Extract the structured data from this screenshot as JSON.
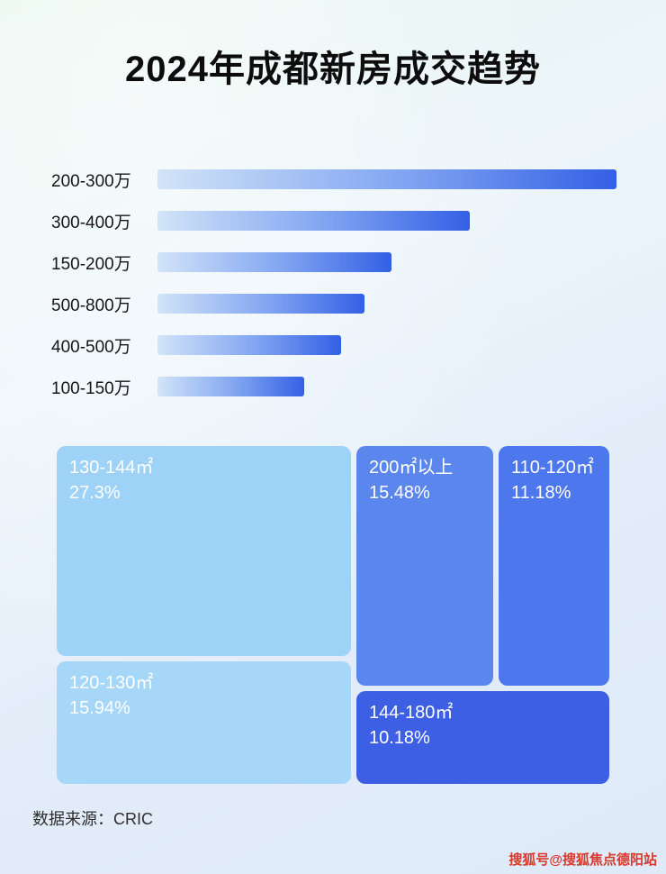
{
  "page": {
    "title": "2024年成都新房成交趋势",
    "footer_source": "数据来源：CRIC",
    "watermark": "搜狐号@搜狐焦点德阳站"
  },
  "colors": {
    "bar_gradient_start": "#d2e4f8",
    "bar_gradient_end": "#3360e5",
    "background_tint_1": "#e6f6ee",
    "background_tint_2": "#deeaf8",
    "watermark_red": "#d9382c"
  },
  "chart_data": [
    {
      "type": "bar",
      "orientation": "horizontal",
      "title": "2024年成都新房成交趋势",
      "categories": [
        "200-300万",
        "300-400万",
        "150-200万",
        "500-800万",
        "400-500万",
        "100-150万"
      ],
      "values": [
        100,
        68,
        51,
        45,
        40,
        32
      ],
      "value_unit": "relative length % (no numeric axis shown in image)",
      "value_labels_shown": false,
      "grid": false,
      "legend": false
    },
    {
      "type": "treemap",
      "title": "",
      "items": [
        {
          "label": "130-144㎡",
          "value": 27.3,
          "pct_text": "27.3%",
          "color": "#9ed2f6"
        },
        {
          "label": "200㎡以上",
          "value": 15.48,
          "pct_text": "15.48%",
          "color": "#5b86ee"
        },
        {
          "label": "110-120㎡",
          "value": 11.18,
          "pct_text": "11.18%",
          "color": "#4d77ec"
        },
        {
          "label": "120-130㎡",
          "value": 15.94,
          "pct_text": "15.94%",
          "color": "#a6d7f8"
        },
        {
          "label": "144-180㎡",
          "value": 10.18,
          "pct_text": "10.18%",
          "color": "#3c5fe4"
        }
      ]
    }
  ]
}
